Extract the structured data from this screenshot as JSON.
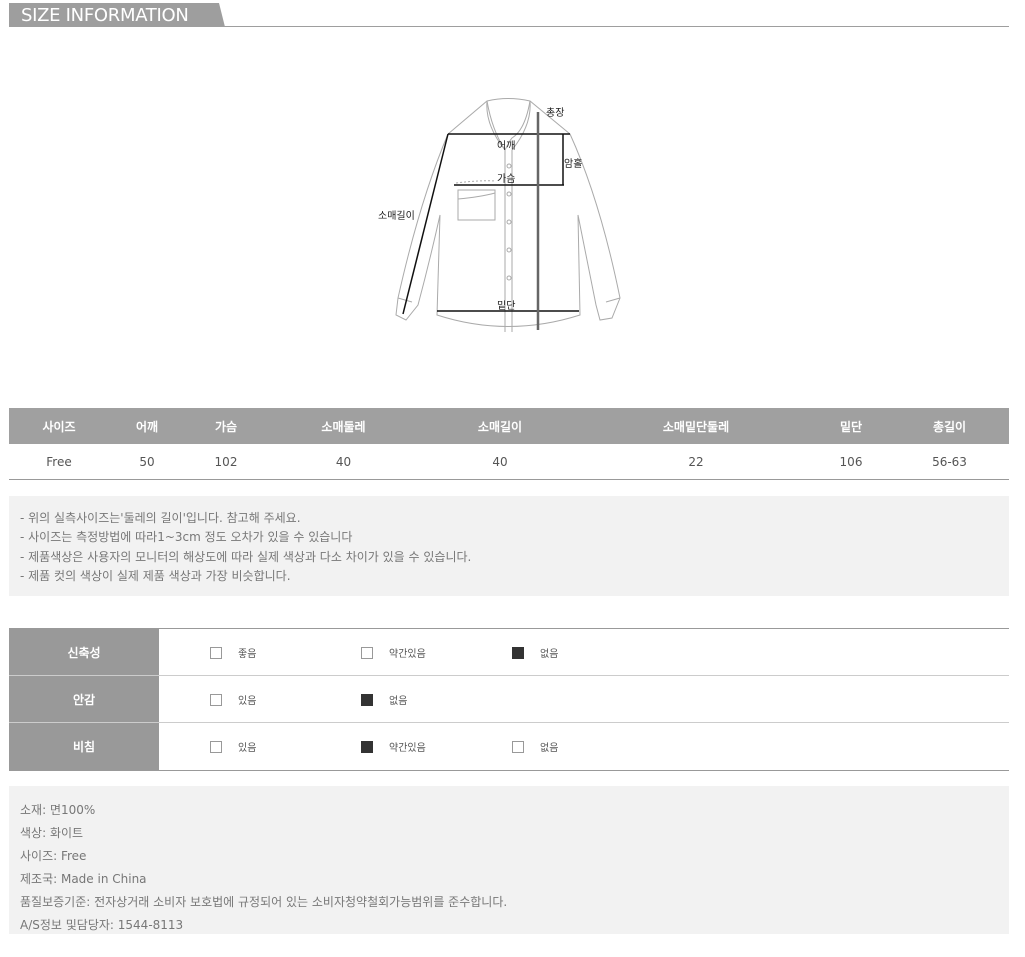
{
  "header": {
    "title": "SIZE INFORMATION"
  },
  "diagram": {
    "labels": {
      "total_length": "총장",
      "shoulder": "어깨",
      "armhole": "암홀",
      "chest": "가슴",
      "sleeve_length": "소매길이",
      "hem": "밑단"
    }
  },
  "size_table": {
    "headers": [
      "사이즈",
      "어깨",
      "가슴",
      "소매둘레",
      "소매길이",
      "소매밑단둘레",
      "밑단",
      "총길이"
    ],
    "rows": [
      [
        "Free",
        "50",
        "102",
        "40",
        "40",
        "22",
        "106",
        "56-63"
      ]
    ]
  },
  "notes": [
    "- 위의 실측사이즈는'둘레의 길이'입니다. 참고해 주세요.",
    "- 사이즈는 측정방법에 따라1~3cm 정도 오차가 있을 수 있습니다",
    "- 제품색상은 사용자의 모니터의 해상도에 따라 실제 색상과 다소 차이가 있을 수 있습니다.",
    "- 제품 컷의 색상이 실제 제품 색상과 가장 비슷합니다."
  ],
  "properties": [
    {
      "label": "신축성",
      "options": [
        {
          "text": "좋음",
          "checked": false
        },
        {
          "text": "약간있음",
          "checked": false
        },
        {
          "text": "없음",
          "checked": true
        }
      ]
    },
    {
      "label": "안감",
      "options": [
        {
          "text": "있음",
          "checked": false
        },
        {
          "text": "없음",
          "checked": true
        }
      ]
    },
    {
      "label": "비침",
      "options": [
        {
          "text": "있음",
          "checked": false
        },
        {
          "text": "약간있음",
          "checked": true
        },
        {
          "text": "없음",
          "checked": false
        }
      ]
    }
  ],
  "info": [
    "소재: 면100%",
    "색상: 화이트",
    "사이즈: Free",
    "제조국: Made in China",
    "품질보증기준: 전자상거래 소비자 보호법에 규정되어 있는 소비자청약철회가능범위를 준수합니다.",
    "A/S정보 및담당자: 1544-8113"
  ],
  "colors": {
    "header_gray": "#9e9e9e",
    "panel_bg": "#f2f2f2",
    "checked": "#333333"
  }
}
